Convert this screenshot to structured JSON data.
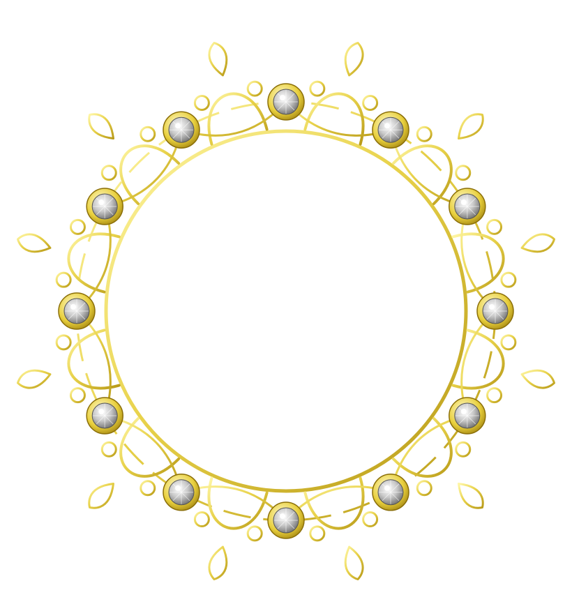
{
  "artwork": {
    "subject": "ornamental-circular-frame",
    "gem_count": 12,
    "palette": {
      "gold_light": "#fff7a8",
      "gold_mid": "#e8d24a",
      "gold_dark": "#a88a10",
      "gem_light": "#ffffff",
      "gem_mid": "#c9c9c9",
      "gem_dark": "#6e6e6e",
      "background": "#ffffff"
    }
  }
}
